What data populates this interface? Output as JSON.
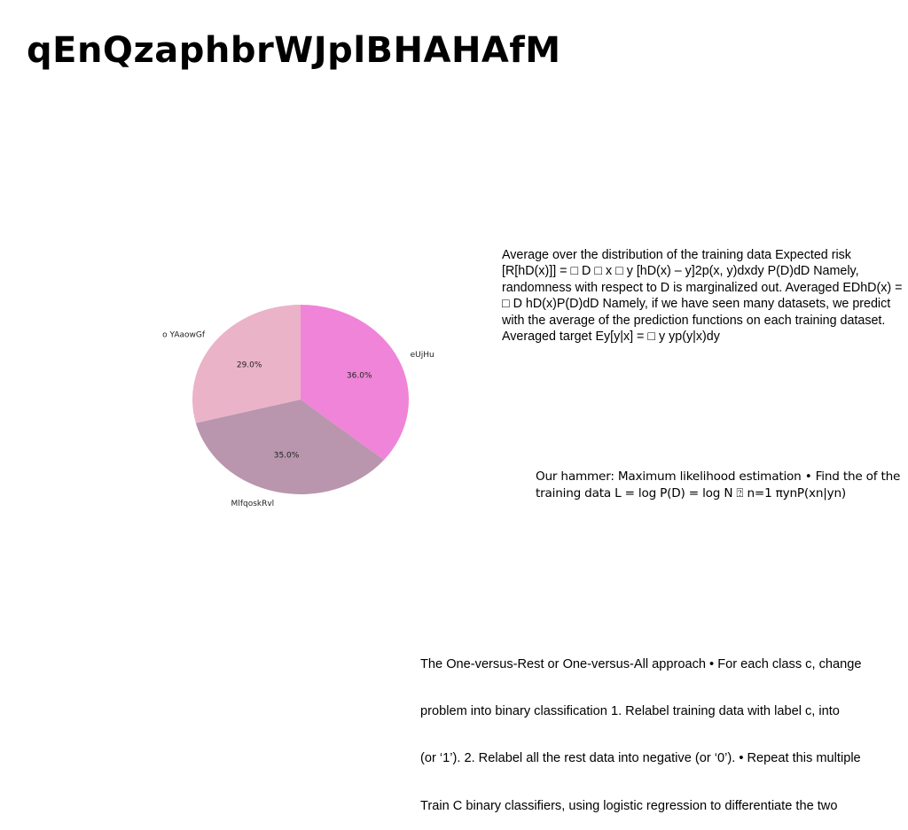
{
  "slide": {
    "title": "qEnQzaphbrWJplBHAHAfM",
    "block1": "Average over the distribution of the training data Expected risk [R[hD(x)]] = □ D □ x □ y [hD(x) – y]2p(x, y)dxdy P(D)dD Namely, randomness with respect to D is marginalized out. Averaged EDhD(x) = □ D hD(x)P(D)dD Namely, if we have seen many datasets, we predict with the average of the prediction functions on each training dataset. Averaged target Ey[y|x] = □ y yp(y|x)dy",
    "block2": "Our hammer: Maximum likelihood estimation • Find the of the training data L = log P(D) = log N ⍰ n=1 πynP(xn|yn)",
    "block3_lines": [
      "The One-versus-Rest or One-versus-All approach • For each class c, change",
      "problem into binary classification 1. Relabel training data with label c, into",
      "(or ‘1’). 2. Relabel all the rest data into negative (or ‘0’). • Repeat this multiple",
      "Train C binary classifiers, using logistic regression to differentiate the two"
    ]
  },
  "chart_data": {
    "type": "pie",
    "start_angle_deg": 90,
    "direction": "clockwise",
    "slices": [
      {
        "label": "eUjHu",
        "value": 36.0,
        "pct_label": "36.0%",
        "color": "#f084d8"
      },
      {
        "label": "MlfqoskRvl",
        "value": 35.0,
        "pct_label": "35.0%",
        "color": "#b995ae"
      },
      {
        "label": "o YAaowGf",
        "value": 29.0,
        "pct_label": "29.0%",
        "color": "#ebb3c8"
      }
    ]
  }
}
